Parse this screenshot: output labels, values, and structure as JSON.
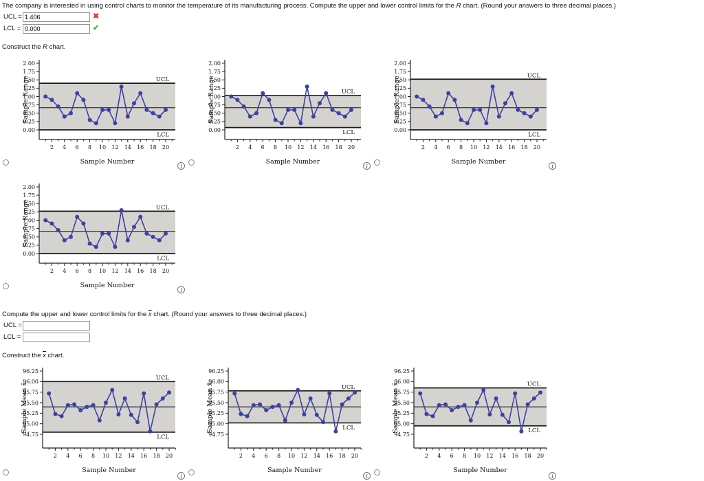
{
  "question": {
    "prefix": "The company is interested in using control charts to monitor the temperature of its manufacturing process. Compute the upper and lower control limits for the ",
    "var": "R",
    "suffix": " chart. (Round your answers to three decimal places.)"
  },
  "r_answers": {
    "ucl_label": "UCL =",
    "ucl_value": "1.406",
    "ucl_status": "incorrect",
    "incorrect_mark": "✖",
    "lcl_label": "LCL =",
    "lcl_value": "0.000",
    "lcl_status": "correct",
    "correct_mark": "✔"
  },
  "construct_r": {
    "prefix": "Construct the ",
    "var": "R",
    "suffix": " chart."
  },
  "xbar_prompt": {
    "prefix": "Compute the upper and lower control limits for the ",
    "var": "x",
    "suffix": " chart. (Round your answers to three decimal places.)"
  },
  "xbar_answers": {
    "ucl_label": "UCL =",
    "ucl_value": "",
    "lcl_label": "LCL =",
    "lcl_value": ""
  },
  "construct_xbar": {
    "prefix": "Construct the ",
    "var": "x",
    "suffix": " chart."
  },
  "icons": {
    "info": "i"
  },
  "colors": {
    "series": "#3b429f",
    "band": "#d5d3d0",
    "limit_line": "#1a1a1a",
    "incorrect": "#e03a2f",
    "correct": "#3fae49"
  },
  "chart_data": [
    {
      "id": "r-chart-option-1",
      "kind": "r",
      "type": "line",
      "ylabel": "Sample Range",
      "xlabel": "Sample Number",
      "yticks": [
        "2.00",
        "1.75",
        "1.50",
        "1.25",
        "1.00",
        "0.75",
        "0.50",
        "0.25",
        "0.00"
      ],
      "xticks": [
        2,
        4,
        6,
        8,
        10,
        12,
        14,
        16,
        18,
        20
      ],
      "x": [
        1,
        2,
        3,
        4,
        5,
        6,
        7,
        8,
        9,
        10,
        11,
        12,
        13,
        14,
        15,
        16,
        17,
        18,
        19,
        20
      ],
      "values": [
        1.0,
        0.9,
        0.7,
        0.4,
        0.5,
        1.1,
        0.9,
        0.3,
        0.2,
        0.6,
        0.6,
        0.2,
        1.3,
        0.4,
        0.8,
        1.1,
        0.6,
        0.5,
        0.4,
        0.6
      ],
      "center": 0.665,
      "ucl": 1.4,
      "lcl": 0.0,
      "ucl_label": "UCL",
      "lcl_label": "LCL",
      "ylim": [
        0,
        2.0
      ]
    },
    {
      "id": "r-chart-option-2",
      "kind": "r",
      "type": "line",
      "ylabel": "Sample Range",
      "xlabel": "Sample Number",
      "yticks": [
        "2.00",
        "1.75",
        "1.50",
        "1.25",
        "1.00",
        "0.75",
        "0.50",
        "0.25",
        "0.00"
      ],
      "xticks": [
        2,
        4,
        6,
        8,
        10,
        12,
        14,
        16,
        18,
        20
      ],
      "x": [
        1,
        2,
        3,
        4,
        5,
        6,
        7,
        8,
        9,
        10,
        11,
        12,
        13,
        14,
        15,
        16,
        17,
        18,
        19,
        20
      ],
      "values": [
        1.0,
        0.9,
        0.7,
        0.4,
        0.5,
        1.1,
        0.9,
        0.3,
        0.2,
        0.6,
        0.6,
        0.2,
        1.3,
        0.4,
        0.8,
        1.1,
        0.6,
        0.5,
        0.4,
        0.6
      ],
      "center": 0.665,
      "ucl": 1.03,
      "lcl": 0.07,
      "ucl_label": "UCL",
      "lcl_label": "LCL",
      "ylim": [
        0,
        2.0
      ]
    },
    {
      "id": "r-chart-option-3",
      "kind": "r",
      "type": "line",
      "ylabel": "Sample Range",
      "xlabel": "Sample Number",
      "yticks": [
        "2.00",
        "1.75",
        "1.50",
        "1.25",
        "1.00",
        "0.75",
        "0.50",
        "0.25",
        "0.00"
      ],
      "xticks": [
        2,
        4,
        6,
        8,
        10,
        12,
        14,
        16,
        18,
        20
      ],
      "x": [
        1,
        2,
        3,
        4,
        5,
        6,
        7,
        8,
        9,
        10,
        11,
        12,
        13,
        14,
        15,
        16,
        17,
        18,
        19,
        20
      ],
      "values": [
        1.0,
        0.9,
        0.7,
        0.4,
        0.5,
        1.1,
        0.9,
        0.3,
        0.2,
        0.6,
        0.6,
        0.2,
        1.3,
        0.4,
        0.8,
        1.1,
        0.6,
        0.5,
        0.4,
        0.6
      ],
      "center": 0.665,
      "ucl": 1.52,
      "lcl": 0.0,
      "ucl_label": "UCL",
      "lcl_label": "LCL",
      "ylim": [
        0,
        2.0
      ]
    },
    {
      "id": "r-chart-option-4",
      "kind": "r",
      "type": "line",
      "ylabel": "Sample Range",
      "xlabel": "Sample Number",
      "yticks": [
        "2.00",
        "1.75",
        "1.50",
        "1.25",
        "1.00",
        "0.75",
        "0.50",
        "0.25",
        "0.00"
      ],
      "xticks": [
        2,
        4,
        6,
        8,
        10,
        12,
        14,
        16,
        18,
        20
      ],
      "x": [
        1,
        2,
        3,
        4,
        5,
        6,
        7,
        8,
        9,
        10,
        11,
        12,
        13,
        14,
        15,
        16,
        17,
        18,
        19,
        20
      ],
      "values": [
        1.0,
        0.9,
        0.7,
        0.4,
        0.5,
        1.1,
        0.9,
        0.3,
        0.2,
        0.6,
        0.6,
        0.2,
        1.3,
        0.4,
        0.8,
        1.1,
        0.6,
        0.5,
        0.4,
        0.6
      ],
      "center": 0.665,
      "ucl": 1.27,
      "lcl": 0.0,
      "ucl_label": "UCL",
      "lcl_label": "LCL",
      "ylim": [
        0,
        2.0
      ]
    },
    {
      "id": "xbar-chart-option-1",
      "kind": "xbar",
      "type": "line",
      "ylabel": "Sample Mean x̄",
      "xlabel": "Sample Number",
      "yticks": [
        "96.25",
        "96.00",
        "95.75",
        "95.50",
        "95.25",
        "95.00",
        "94.75"
      ],
      "xticks": [
        2,
        4,
        6,
        8,
        10,
        12,
        14,
        16,
        18,
        20
      ],
      "x": [
        1,
        2,
        3,
        4,
        5,
        6,
        7,
        8,
        9,
        10,
        11,
        12,
        13,
        14,
        15,
        16,
        17,
        18,
        19,
        20
      ],
      "values": [
        95.72,
        95.23,
        95.18,
        95.44,
        95.46,
        95.32,
        95.4,
        95.44,
        95.08,
        95.5,
        95.8,
        95.22,
        95.6,
        95.21,
        95.04,
        95.72,
        94.82,
        95.46,
        95.6,
        95.74
      ],
      "center": 95.4,
      "ucl": 96.0,
      "lcl": 94.8,
      "ucl_label": "UCL",
      "lcl_label": "LCL",
      "ylim": [
        94.75,
        96.25
      ]
    },
    {
      "id": "xbar-chart-option-2",
      "kind": "xbar",
      "type": "line",
      "ylabel": "Sample Mean x̄",
      "xlabel": "Sample Number",
      "yticks": [
        "96.25",
        "96.00",
        "95.75",
        "95.50",
        "95.25",
        "95.00",
        "94.75"
      ],
      "xticks": [
        2,
        4,
        6,
        8,
        10,
        12,
        14,
        16,
        18,
        20
      ],
      "x": [
        1,
        2,
        3,
        4,
        5,
        6,
        7,
        8,
        9,
        10,
        11,
        12,
        13,
        14,
        15,
        16,
        17,
        18,
        19,
        20
      ],
      "values": [
        95.72,
        95.23,
        95.18,
        95.44,
        95.46,
        95.32,
        95.4,
        95.44,
        95.08,
        95.5,
        95.8,
        95.22,
        95.6,
        95.21,
        95.04,
        95.72,
        94.82,
        95.46,
        95.6,
        95.74
      ],
      "center": 95.4,
      "ucl": 95.78,
      "lcl": 95.02,
      "ucl_label": "UCL",
      "lcl_label": "LCL",
      "ylim": [
        94.75,
        96.25
      ]
    },
    {
      "id": "xbar-chart-option-3",
      "kind": "xbar",
      "type": "line",
      "ylabel": "Sample Mean x̄",
      "xlabel": "Sample Number",
      "yticks": [
        "96.25",
        "96.00",
        "95.75",
        "95.50",
        "95.25",
        "95.00",
        "94.75"
      ],
      "xticks": [
        2,
        4,
        6,
        8,
        10,
        12,
        14,
        16,
        18,
        20
      ],
      "x": [
        1,
        2,
        3,
        4,
        5,
        6,
        7,
        8,
        9,
        10,
        11,
        12,
        13,
        14,
        15,
        16,
        17,
        18,
        19,
        20
      ],
      "values": [
        95.72,
        95.23,
        95.18,
        95.44,
        95.46,
        95.32,
        95.4,
        95.44,
        95.08,
        95.5,
        95.8,
        95.22,
        95.6,
        95.21,
        95.04,
        95.72,
        94.82,
        95.46,
        95.6,
        95.74
      ],
      "center": 95.4,
      "ucl": 95.85,
      "lcl": 94.95,
      "ucl_label": "UCL",
      "lcl_label": "LCL",
      "ylim": [
        94.75,
        96.25
      ]
    }
  ]
}
